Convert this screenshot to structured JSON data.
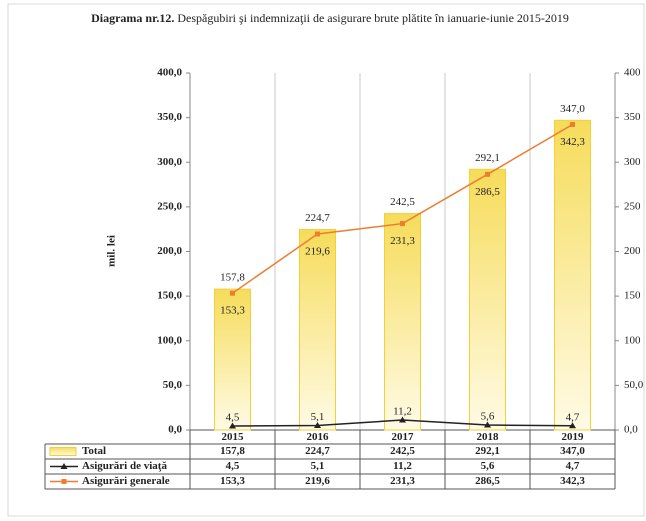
{
  "chart_data": {
    "type": "bar-line",
    "title_label": "Diagrama nr.12.",
    "title": "Despăgubiri şi indemnizaţii de asigurare brute plătite în ianuarie-iunie 2015-2019",
    "ylabel": "mil. lei",
    "categories": [
      "2015",
      "2016",
      "2017",
      "2018",
      "2019"
    ],
    "series": [
      {
        "name": "Total",
        "kind": "bar",
        "color": "#f3cf3a",
        "values": [
          157.8,
          224.7,
          242.5,
          292.1,
          347.0
        ],
        "value_labels": [
          "157,8",
          "224,7",
          "242,5",
          "292,1",
          "347,0"
        ]
      },
      {
        "name": "Asigurări de viaţă",
        "kind": "line",
        "marker": "triangle",
        "color": "#222222",
        "values": [
          4.5,
          5.1,
          11.2,
          5.6,
          4.7
        ],
        "value_labels": [
          "4,5",
          "5,1",
          "11,2",
          "5,6",
          "4,7"
        ]
      },
      {
        "name": "Asigurări generale",
        "kind": "line",
        "marker": "square",
        "color": "#ed7d31",
        "values": [
          153.3,
          219.6,
          231.3,
          286.5,
          342.3
        ],
        "value_labels": [
          "153,3",
          "219,6",
          "231,3",
          "286,5",
          "342,3"
        ]
      }
    ],
    "ylim": [
      0,
      400
    ],
    "yticks": [
      {
        "value": 0,
        "label": "0,0"
      },
      {
        "value": 50,
        "label": "50,0"
      },
      {
        "value": 100,
        "label": "100,0"
      },
      {
        "value": 150,
        "label": "150,0"
      },
      {
        "value": 200,
        "label": "200,0"
      },
      {
        "value": 250,
        "label": "250,0"
      },
      {
        "value": 300,
        "label": "300,0"
      },
      {
        "value": 350,
        "label": "350,0"
      },
      {
        "value": 400,
        "label": "400,0"
      }
    ],
    "y2lim": [
      0,
      400
    ],
    "y2ticks": [
      {
        "value": 0,
        "label": "0,0"
      },
      {
        "value": 50,
        "label": "50,0"
      },
      {
        "value": 100,
        "label": "100"
      },
      {
        "value": 150,
        "label": "150"
      },
      {
        "value": 200,
        "label": "200"
      },
      {
        "value": 250,
        "label": "250"
      },
      {
        "value": 300,
        "label": "300"
      },
      {
        "value": 350,
        "label": "350"
      },
      {
        "value": 400,
        "label": "400"
      }
    ],
    "grid": "x"
  }
}
